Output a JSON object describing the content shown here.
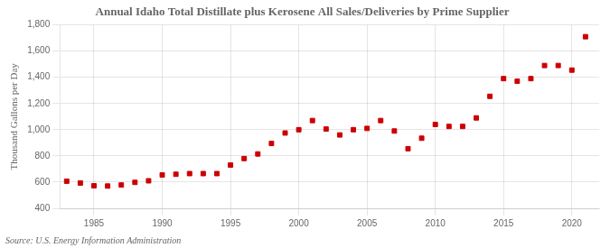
{
  "chart_data": {
    "type": "scatter",
    "title": "Annual Idaho Total Distillate plus Kerosene All Sales/Deliveries by Prime Supplier",
    "ylabel": "Thousand Gallons per Day",
    "annotations": [
      "Source: U.S. Energy Information Administration"
    ],
    "x": [
      1983,
      1984,
      1985,
      1986,
      1987,
      1988,
      1989,
      1990,
      1991,
      1992,
      1993,
      1994,
      1995,
      1996,
      1997,
      1998,
      1999,
      2000,
      2001,
      2002,
      2003,
      2004,
      2005,
      2006,
      2007,
      2008,
      2009,
      2010,
      2011,
      2012,
      2013,
      2014,
      2015,
      2016,
      2017,
      2018,
      2019,
      2020,
      2021
    ],
    "values": [
      607,
      593,
      572,
      570,
      578,
      598,
      610,
      655,
      660,
      665,
      665,
      665,
      730,
      780,
      815,
      895,
      975,
      1000,
      1070,
      1005,
      960,
      1000,
      1010,
      1070,
      990,
      855,
      935,
      1040,
      1025,
      1025,
      1090,
      1255,
      1390,
      1370,
      1390,
      1490,
      1490,
      1455,
      1710
    ],
    "color": "#cc0000",
    "marker": "square",
    "xlim": [
      1982.5,
      2022
    ],
    "xticks": [
      1985,
      1990,
      1995,
      2000,
      2005,
      2010,
      2015,
      2020
    ],
    "ylim": [
      400,
      1800
    ],
    "yticks": [
      400,
      600,
      800,
      {
        "value": 1000,
        "label": "1,000"
      },
      {
        "value": 1200,
        "label": "1,200"
      },
      {
        "value": 1400,
        "label": "1,400"
      },
      {
        "value": 1600,
        "label": "1,600"
      },
      {
        "value": 1800,
        "label": "1,800"
      }
    ],
    "grid": true
  }
}
